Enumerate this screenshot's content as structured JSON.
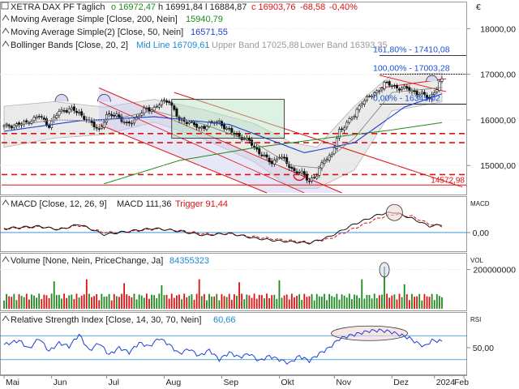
{
  "chart_data": [
    {
      "type": "candlestick",
      "panel": "price",
      "header": {
        "instrument": "XETRA DAX PF",
        "period": "Täglich",
        "o": "o 16972,47",
        "h": "h 16991,84",
        "l": "l 16884,87",
        "c": "c 16903,76",
        "chg": "-68,58",
        "pct": "-0,40%",
        "lines": [
          {
            "label": "Moving Average Simple [Close, 200, Nein]",
            "value": "15940,79"
          },
          {
            "label": "Moving Average Simple(2) [Close, 50, Nein]",
            "value": "16571,55"
          },
          {
            "label": "Bollinger Bands [Close, 20, 2]",
            "mid": "Mid Line 16709,61",
            "upper": "Upper Band 17025,88",
            "lower": "Lower Band 16393,35"
          }
        ]
      },
      "currency_label": "€",
      "y_ticks": [
        {
          "v": 15000,
          "label": "15000,00"
        },
        {
          "v": 16000,
          "label": "16000,00"
        },
        {
          "v": 17000,
          "label": "17000,00"
        },
        {
          "v": 18000,
          "label": "18000,00"
        }
      ],
      "ylim": [
        14400,
        18450
      ],
      "x_ticks": [
        "Mai",
        "Jun",
        "Jul",
        "Aug",
        "Sep",
        "Okt",
        "Nov",
        "Dez",
        "2024",
        "Feb"
      ],
      "anchors": [
        [
          0,
          15850
        ],
        [
          8,
          15920
        ],
        [
          14,
          16080
        ],
        [
          18,
          15880
        ],
        [
          22,
          16180
        ],
        [
          26,
          16240
        ],
        [
          30,
          16150
        ],
        [
          34,
          15950
        ],
        [
          38,
          15780
        ],
        [
          41,
          16080
        ],
        [
          45,
          16120
        ],
        [
          49,
          15880
        ],
        [
          52,
          16010
        ],
        [
          56,
          16210
        ],
        [
          60,
          16260
        ],
        [
          63,
          16380
        ],
        [
          66,
          16430
        ],
        [
          70,
          15980
        ],
        [
          74,
          15970
        ],
        [
          78,
          15800
        ],
        [
          82,
          15920
        ],
        [
          86,
          15960
        ],
        [
          90,
          15750
        ],
        [
          94,
          15650
        ],
        [
          98,
          15520
        ],
        [
          101,
          15350
        ],
        [
          104,
          15180
        ],
        [
          107,
          15060
        ],
        [
          110,
          15210
        ],
        [
          113,
          15050
        ],
        [
          116,
          14880
        ],
        [
          119,
          14820
        ],
        [
          122,
          14680
        ],
        [
          125,
          14780
        ],
        [
          128,
          15150
        ],
        [
          131,
          15230
        ],
        [
          134,
          15750
        ],
        [
          137,
          15950
        ],
        [
          140,
          16080
        ],
        [
          143,
          16420
        ],
        [
          146,
          16500
        ],
        [
          149,
          16620
        ],
        [
          152,
          16800
        ],
        [
          155,
          16750
        ],
        [
          158,
          16700
        ],
        [
          161,
          16680
        ],
        [
          164,
          16620
        ],
        [
          167,
          16550
        ],
        [
          170,
          16480
        ],
        [
          173,
          16690
        ],
        [
          175,
          16903.76
        ]
      ],
      "ma200_anchors": [
        [
          40,
          14600
        ],
        [
          70,
          15110
        ],
        [
          100,
          15390
        ],
        [
          130,
          15610
        ],
        [
          155,
          15780
        ],
        [
          175,
          15940.79
        ]
      ],
      "ma50_anchors": [
        [
          0,
          15750
        ],
        [
          30,
          15980
        ],
        [
          60,
          16070
        ],
        [
          90,
          15900
        ],
        [
          120,
          15280
        ],
        [
          140,
          15500
        ],
        [
          160,
          16280
        ],
        [
          175,
          16571.55
        ]
      ],
      "bb_mid_anchors": [
        [
          0,
          15850
        ],
        [
          20,
          16000
        ],
        [
          40,
          15980
        ],
        [
          60,
          16200
        ],
        [
          80,
          15900
        ],
        [
          100,
          15500
        ],
        [
          115,
          15000
        ],
        [
          125,
          14950
        ],
        [
          140,
          15600
        ],
        [
          155,
          16600
        ],
        [
          175,
          16709.61
        ]
      ],
      "bb_halfwidth_anchors": [
        [
          0,
          450
        ],
        [
          20,
          400
        ],
        [
          40,
          300
        ],
        [
          60,
          250
        ],
        [
          80,
          320
        ],
        [
          100,
          420
        ],
        [
          115,
          500
        ],
        [
          125,
          450
        ],
        [
          140,
          700
        ],
        [
          155,
          400
        ],
        [
          175,
          316.27
        ]
      ],
      "fibonacci": [
        {
          "label": "161,80% - 17410,08",
          "v": 17410.08
        },
        {
          "label": "100,00% - 17003,28",
          "v": 17003.28
        },
        {
          "label": "0,00% - 16345,02",
          "v": 16345.02
        }
      ],
      "support_levels": [
        {
          "v": 15700,
          "label": ""
        },
        {
          "v": 15500,
          "label": ""
        },
        {
          "v": 14800,
          "label": ""
        },
        {
          "v": 14572.98,
          "label": "14572,98"
        }
      ],
      "channel_note": "descending channel Jun–Nov, horizontal range box Aug–Okt"
    },
    {
      "type": "line",
      "panel": "macd",
      "header": {
        "label": "MACD [Close, 12, 26, 9]",
        "value": "MACD 111,36",
        "trigger": "Trigger 91,44"
      },
      "side_label": "MACD",
      "y_ticks": [
        {
          "v": 0,
          "label": "0,00"
        }
      ],
      "ylim": [
        -220,
        380
      ],
      "macd_anchors": [
        [
          0,
          60
        ],
        [
          14,
          90
        ],
        [
          22,
          40
        ],
        [
          30,
          120
        ],
        [
          40,
          -30
        ],
        [
          50,
          20
        ],
        [
          60,
          60
        ],
        [
          70,
          20
        ],
        [
          80,
          -40
        ],
        [
          90,
          -10
        ],
        [
          100,
          -80
        ],
        [
          110,
          -120
        ],
        [
          122,
          -150
        ],
        [
          130,
          -60
        ],
        [
          140,
          120
        ],
        [
          150,
          260
        ],
        [
          156,
          290
        ],
        [
          163,
          200
        ],
        [
          170,
          90
        ],
        [
          175,
          111.36
        ]
      ],
      "trigger_anchors": [
        [
          0,
          50
        ],
        [
          14,
          80
        ],
        [
          22,
          50
        ],
        [
          30,
          100
        ],
        [
          40,
          0
        ],
        [
          50,
          10
        ],
        [
          60,
          50
        ],
        [
          70,
          30
        ],
        [
          80,
          -20
        ],
        [
          90,
          -20
        ],
        [
          100,
          -60
        ],
        [
          110,
          -100
        ],
        [
          122,
          -140
        ],
        [
          130,
          -90
        ],
        [
          140,
          60
        ],
        [
          150,
          210
        ],
        [
          156,
          260
        ],
        [
          163,
          230
        ],
        [
          170,
          120
        ],
        [
          175,
          91.44
        ]
      ]
    },
    {
      "type": "bar",
      "panel": "volume",
      "header": {
        "label": "Volume [None, Nein, PriceChange, Ja]",
        "value": "84355323"
      },
      "side_label": "VOL",
      "y_ticks": [
        {
          "v": 200000000,
          "label": "200000000"
        }
      ],
      "ylim": [
        0,
        260000000
      ],
      "typical_volume": 70000000,
      "spikes": [
        [
          20,
          140000000
        ],
        [
          33,
          150000000
        ],
        [
          48,
          130000000
        ],
        [
          63,
          120000000
        ],
        [
          78,
          150000000
        ],
        [
          94,
          135000000
        ],
        [
          110,
          145000000
        ],
        [
          143,
          150000000
        ],
        [
          152,
          215000000
        ],
        [
          160,
          125000000
        ]
      ]
    },
    {
      "type": "line",
      "panel": "rsi",
      "header": {
        "label": "Relative Strength Index [Close, 14, 30, 70, Nein]",
        "value": "60,66"
      },
      "side_label": "RSI",
      "y_ticks": [
        {
          "v": 50,
          "label": "50,00"
        }
      ],
      "ylim": [
        8,
        92
      ],
      "upper_level": 70,
      "lower_level": 30,
      "anchors": [
        [
          0,
          55
        ],
        [
          6,
          62
        ],
        [
          10,
          48
        ],
        [
          14,
          66
        ],
        [
          18,
          44
        ],
        [
          22,
          58
        ],
        [
          26,
          52
        ],
        [
          30,
          72
        ],
        [
          34,
          45
        ],
        [
          38,
          58
        ],
        [
          42,
          38
        ],
        [
          46,
          50
        ],
        [
          50,
          42
        ],
        [
          54,
          58
        ],
        [
          58,
          52
        ],
        [
          62,
          66
        ],
        [
          66,
          55
        ],
        [
          70,
          40
        ],
        [
          74,
          48
        ],
        [
          78,
          36
        ],
        [
          82,
          46
        ],
        [
          86,
          30
        ],
        [
          90,
          42
        ],
        [
          94,
          34
        ],
        [
          98,
          40
        ],
        [
          102,
          28
        ],
        [
          106,
          36
        ],
        [
          110,
          30
        ],
        [
          114,
          24
        ],
        [
          118,
          36
        ],
        [
          122,
          28
        ],
        [
          126,
          40
        ],
        [
          130,
          50
        ],
        [
          134,
          65
        ],
        [
          138,
          70
        ],
        [
          142,
          74
        ],
        [
          146,
          78
        ],
        [
          150,
          79
        ],
        [
          154,
          77
        ],
        [
          158,
          72
        ],
        [
          162,
          66
        ],
        [
          165,
          58
        ],
        [
          168,
          52
        ],
        [
          171,
          62
        ],
        [
          175,
          60.66
        ]
      ]
    }
  ]
}
